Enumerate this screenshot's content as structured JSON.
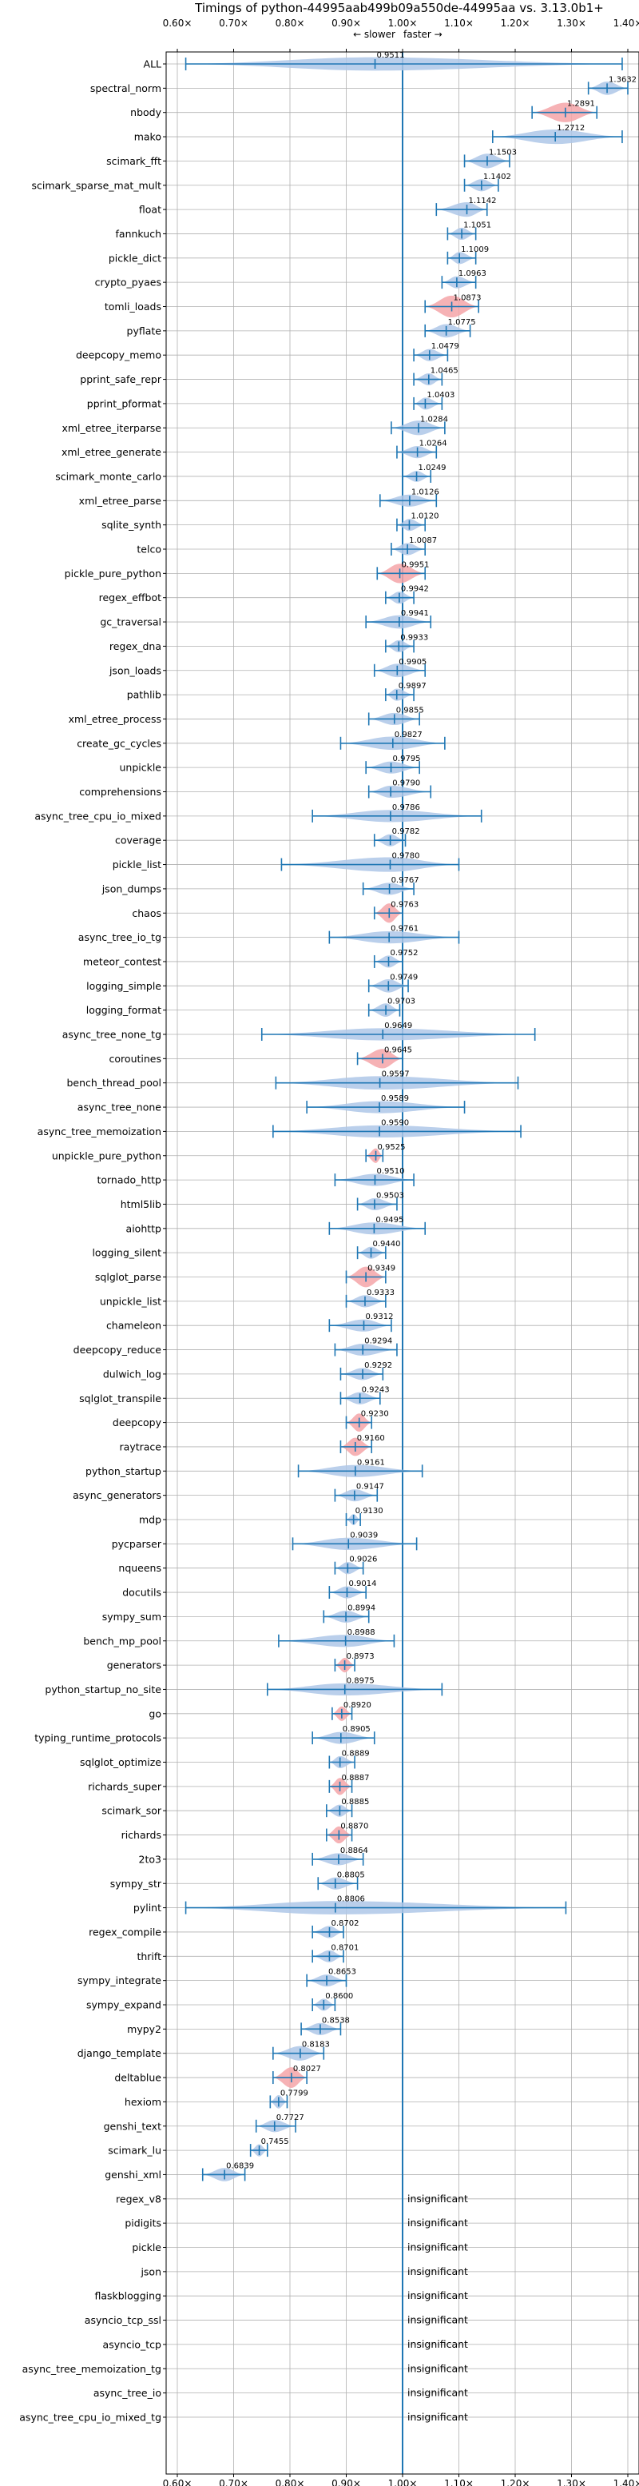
{
  "chart_data": {
    "type": "violin",
    "title": "Timings of python-44995aab499b09a550de-44995aa vs. 3.13.0b1+",
    "direction_left": "← slower",
    "direction_right": "faster →",
    "insignificant_label": "insignificant",
    "xlim": [
      0.6,
      1.4
    ],
    "xticks": [
      0.6,
      0.7,
      0.8,
      0.9,
      1.0,
      1.1,
      1.2,
      1.3,
      1.4
    ],
    "xtick_labels": [
      "0.60×",
      "0.70×",
      "0.80×",
      "0.90×",
      "1.00×",
      "1.10×",
      "1.20×",
      "1.30×",
      "1.40×"
    ],
    "grid": true,
    "colors": {
      "violin": "#aec7e8",
      "significant_violin": "#f4a5a8",
      "line": "#1f77b4",
      "grid": "#b0b0b0"
    },
    "rows": [
      {
        "name": "ALL",
        "value": 0.9511,
        "min": 0.615,
        "max": 1.39,
        "width": 0.55,
        "sig": false,
        "label": "0.9511"
      },
      {
        "name": "spectral_norm",
        "value": 1.3632,
        "min": 1.33,
        "max": 1.4,
        "width": 0.55,
        "sig": false,
        "label": "1.3632"
      },
      {
        "name": "nbody",
        "value": 1.2891,
        "min": 1.23,
        "max": 1.345,
        "width": 0.8,
        "sig": true,
        "label": "1.2891"
      },
      {
        "name": "mako",
        "value": 1.2712,
        "min": 1.16,
        "max": 1.39,
        "width": 0.6,
        "sig": false,
        "label": "1.2712"
      },
      {
        "name": "scimark_fft",
        "value": 1.1503,
        "min": 1.11,
        "max": 1.19,
        "width": 0.6,
        "sig": false,
        "label": "1.1503"
      },
      {
        "name": "scimark_sparse_mat_mult",
        "value": 1.1402,
        "min": 1.11,
        "max": 1.17,
        "width": 0.5,
        "sig": false,
        "label": "1.1402"
      },
      {
        "name": "float",
        "value": 1.1142,
        "min": 1.06,
        "max": 1.15,
        "width": 0.6,
        "sig": false,
        "label": "1.1142"
      },
      {
        "name": "fannkuch",
        "value": 1.1051,
        "min": 1.08,
        "max": 1.13,
        "width": 0.5,
        "sig": false,
        "label": "1.1051"
      },
      {
        "name": "pickle_dict",
        "value": 1.1009,
        "min": 1.08,
        "max": 1.13,
        "width": 0.5,
        "sig": false,
        "label": "1.1009"
      },
      {
        "name": "crypto_pyaes",
        "value": 1.0963,
        "min": 1.07,
        "max": 1.13,
        "width": 0.5,
        "sig": false,
        "label": "1.0963"
      },
      {
        "name": "tomli_loads",
        "value": 1.0873,
        "min": 1.04,
        "max": 1.135,
        "width": 0.9,
        "sig": true,
        "label": "1.0873"
      },
      {
        "name": "pyflate",
        "value": 1.0775,
        "min": 1.04,
        "max": 1.12,
        "width": 0.55,
        "sig": false,
        "label": "1.0775"
      },
      {
        "name": "deepcopy_memo",
        "value": 1.0479,
        "min": 1.02,
        "max": 1.08,
        "width": 0.5,
        "sig": false,
        "label": "1.0479"
      },
      {
        "name": "pprint_safe_repr",
        "value": 1.0465,
        "min": 1.02,
        "max": 1.07,
        "width": 0.5,
        "sig": false,
        "label": "1.0465"
      },
      {
        "name": "pprint_pformat",
        "value": 1.0403,
        "min": 1.02,
        "max": 1.07,
        "width": 0.5,
        "sig": false,
        "label": "1.0403"
      },
      {
        "name": "xml_etree_iterparse",
        "value": 1.0284,
        "min": 0.98,
        "max": 1.075,
        "width": 0.6,
        "sig": false,
        "label": "1.0284"
      },
      {
        "name": "xml_etree_generate",
        "value": 1.0264,
        "min": 0.99,
        "max": 1.06,
        "width": 0.5,
        "sig": false,
        "label": "1.0264"
      },
      {
        "name": "scimark_monte_carlo",
        "value": 1.0249,
        "min": 1.0,
        "max": 1.05,
        "width": 0.45,
        "sig": false,
        "label": "1.0249"
      },
      {
        "name": "xml_etree_parse",
        "value": 1.0126,
        "min": 0.96,
        "max": 1.06,
        "width": 0.5,
        "sig": false,
        "label": "1.0126"
      },
      {
        "name": "sqlite_synth",
        "value": 1.012,
        "min": 0.99,
        "max": 1.04,
        "width": 0.5,
        "sig": false,
        "label": "1.0120"
      },
      {
        "name": "telco",
        "value": 1.0087,
        "min": 0.98,
        "max": 1.04,
        "width": 0.5,
        "sig": false,
        "label": "1.0087"
      },
      {
        "name": "pickle_pure_python",
        "value": 0.9951,
        "min": 0.955,
        "max": 1.04,
        "width": 0.8,
        "sig": true,
        "label": "0.9951"
      },
      {
        "name": "regex_effbot",
        "value": 0.9942,
        "min": 0.97,
        "max": 1.02,
        "width": 0.5,
        "sig": false,
        "label": "0.9942"
      },
      {
        "name": "gc_traversal",
        "value": 0.9941,
        "min": 0.935,
        "max": 1.05,
        "width": 0.55,
        "sig": false,
        "label": "0.9941"
      },
      {
        "name": "regex_dna",
        "value": 0.9933,
        "min": 0.97,
        "max": 1.02,
        "width": 0.5,
        "sig": false,
        "label": "0.9933"
      },
      {
        "name": "json_loads",
        "value": 0.9905,
        "min": 0.95,
        "max": 1.04,
        "width": 0.55,
        "sig": false,
        "label": "0.9905"
      },
      {
        "name": "pathlib",
        "value": 0.9897,
        "min": 0.97,
        "max": 1.02,
        "width": 0.5,
        "sig": false,
        "label": "0.9897"
      },
      {
        "name": "xml_etree_process",
        "value": 0.9855,
        "min": 0.94,
        "max": 1.03,
        "width": 0.5,
        "sig": false,
        "label": "0.9855"
      },
      {
        "name": "create_gc_cycles",
        "value": 0.9827,
        "min": 0.89,
        "max": 1.075,
        "width": 0.55,
        "sig": false,
        "label": "0.9827"
      },
      {
        "name": "unpickle",
        "value": 0.9795,
        "min": 0.935,
        "max": 1.03,
        "width": 0.5,
        "sig": false,
        "label": "0.9795"
      },
      {
        "name": "comprehensions",
        "value": 0.979,
        "min": 0.94,
        "max": 1.05,
        "width": 0.5,
        "sig": false,
        "label": "0.9790"
      },
      {
        "name": "async_tree_cpu_io_mixed",
        "value": 0.9786,
        "min": 0.84,
        "max": 1.14,
        "width": 0.5,
        "sig": false,
        "label": "0.9786"
      },
      {
        "name": "coverage",
        "value": 0.9782,
        "min": 0.95,
        "max": 1.005,
        "width": 0.5,
        "sig": false,
        "label": "0.9782"
      },
      {
        "name": "pickle_list",
        "value": 0.978,
        "min": 0.785,
        "max": 1.1,
        "width": 0.6,
        "sig": false,
        "label": "0.9780"
      },
      {
        "name": "json_dumps",
        "value": 0.9767,
        "min": 0.93,
        "max": 1.02,
        "width": 0.5,
        "sig": false,
        "label": "0.9767"
      },
      {
        "name": "chaos",
        "value": 0.9763,
        "min": 0.95,
        "max": 1.0,
        "width": 0.8,
        "sig": true,
        "label": "0.9763"
      },
      {
        "name": "async_tree_io_tg",
        "value": 0.9761,
        "min": 0.87,
        "max": 1.1,
        "width": 0.5,
        "sig": false,
        "label": "0.9761"
      },
      {
        "name": "meteor_contest",
        "value": 0.9752,
        "min": 0.95,
        "max": 1.0,
        "width": 0.5,
        "sig": false,
        "label": "0.9752"
      },
      {
        "name": "logging_simple",
        "value": 0.9749,
        "min": 0.94,
        "max": 1.01,
        "width": 0.55,
        "sig": false,
        "label": "0.9749"
      },
      {
        "name": "logging_format",
        "value": 0.9703,
        "min": 0.94,
        "max": 0.995,
        "width": 0.55,
        "sig": false,
        "label": "0.9703"
      },
      {
        "name": "async_tree_none_tg",
        "value": 0.9649,
        "min": 0.75,
        "max": 1.235,
        "width": 0.5,
        "sig": false,
        "label": "0.9649"
      },
      {
        "name": "coroutines",
        "value": 0.9645,
        "min": 0.92,
        "max": 1.0,
        "width": 0.8,
        "sig": true,
        "label": "0.9645"
      },
      {
        "name": "bench_thread_pool",
        "value": 0.9597,
        "min": 0.775,
        "max": 1.205,
        "width": 0.55,
        "sig": false,
        "label": "0.9597"
      },
      {
        "name": "async_tree_none",
        "value": 0.9589,
        "min": 0.83,
        "max": 1.11,
        "width": 0.5,
        "sig": false,
        "label": "0.9589"
      },
      {
        "name": "async_tree_memoization",
        "value": 0.959,
        "min": 0.77,
        "max": 1.21,
        "width": 0.5,
        "sig": false,
        "label": "0.9590"
      },
      {
        "name": "unpickle_pure_python",
        "value": 0.9525,
        "min": 0.935,
        "max": 0.965,
        "width": 0.6,
        "sig": true,
        "label": "0.9525"
      },
      {
        "name": "tornado_http",
        "value": 0.951,
        "min": 0.88,
        "max": 1.02,
        "width": 0.5,
        "sig": false,
        "label": "0.9510"
      },
      {
        "name": "html5lib",
        "value": 0.9503,
        "min": 0.92,
        "max": 0.99,
        "width": 0.5,
        "sig": false,
        "label": "0.9503"
      },
      {
        "name": "aiohttp",
        "value": 0.9495,
        "min": 0.87,
        "max": 1.04,
        "width": 0.5,
        "sig": false,
        "label": "0.9495"
      },
      {
        "name": "logging_silent",
        "value": 0.944,
        "min": 0.92,
        "max": 0.97,
        "width": 0.5,
        "sig": false,
        "label": "0.9440"
      },
      {
        "name": "sqlglot_parse",
        "value": 0.9349,
        "min": 0.9,
        "max": 0.97,
        "width": 0.85,
        "sig": true,
        "label": "0.9349"
      },
      {
        "name": "unpickle_list",
        "value": 0.9333,
        "min": 0.9,
        "max": 0.97,
        "width": 0.5,
        "sig": false,
        "label": "0.9333"
      },
      {
        "name": "chameleon",
        "value": 0.9312,
        "min": 0.87,
        "max": 0.98,
        "width": 0.5,
        "sig": false,
        "label": "0.9312"
      },
      {
        "name": "deepcopy_reduce",
        "value": 0.9294,
        "min": 0.88,
        "max": 0.99,
        "width": 0.5,
        "sig": false,
        "label": "0.9294"
      },
      {
        "name": "dulwich_log",
        "value": 0.9292,
        "min": 0.89,
        "max": 0.965,
        "width": 0.5,
        "sig": false,
        "label": "0.9292"
      },
      {
        "name": "sqlglot_transpile",
        "value": 0.9243,
        "min": 0.89,
        "max": 0.96,
        "width": 0.5,
        "sig": false,
        "label": "0.9243"
      },
      {
        "name": "deepcopy",
        "value": 0.923,
        "min": 0.9,
        "max": 0.945,
        "width": 0.75,
        "sig": true,
        "label": "0.9230"
      },
      {
        "name": "raytrace",
        "value": 0.916,
        "min": 0.89,
        "max": 0.945,
        "width": 0.75,
        "sig": true,
        "label": "0.9160"
      },
      {
        "name": "python_startup",
        "value": 0.9161,
        "min": 0.815,
        "max": 1.035,
        "width": 0.5,
        "sig": false,
        "label": "0.9161"
      },
      {
        "name": "async_generators",
        "value": 0.9147,
        "min": 0.88,
        "max": 0.955,
        "width": 0.5,
        "sig": false,
        "label": "0.9147"
      },
      {
        "name": "mdp",
        "value": 0.913,
        "min": 0.9,
        "max": 0.925,
        "width": 0.45,
        "sig": false,
        "label": "0.9130"
      },
      {
        "name": "pycparser",
        "value": 0.9039,
        "min": 0.805,
        "max": 1.025,
        "width": 0.5,
        "sig": false,
        "label": "0.9039"
      },
      {
        "name": "nqueens",
        "value": 0.9026,
        "min": 0.88,
        "max": 0.93,
        "width": 0.5,
        "sig": false,
        "label": "0.9026"
      },
      {
        "name": "docutils",
        "value": 0.9014,
        "min": 0.87,
        "max": 0.935,
        "width": 0.5,
        "sig": false,
        "label": "0.9014"
      },
      {
        "name": "sympy_sum",
        "value": 0.8994,
        "min": 0.86,
        "max": 0.94,
        "width": 0.5,
        "sig": false,
        "label": "0.8994"
      },
      {
        "name": "bench_mp_pool",
        "value": 0.8988,
        "min": 0.78,
        "max": 0.985,
        "width": 0.5,
        "sig": false,
        "label": "0.8988"
      },
      {
        "name": "generators",
        "value": 0.8973,
        "min": 0.88,
        "max": 0.915,
        "width": 0.6,
        "sig": true,
        "label": "0.8973"
      },
      {
        "name": "python_startup_no_site",
        "value": 0.8975,
        "min": 0.76,
        "max": 1.07,
        "width": 0.5,
        "sig": false,
        "label": "0.8975"
      },
      {
        "name": "go",
        "value": 0.892,
        "min": 0.875,
        "max": 0.91,
        "width": 0.6,
        "sig": true,
        "label": "0.8920"
      },
      {
        "name": "typing_runtime_protocols",
        "value": 0.8905,
        "min": 0.84,
        "max": 0.95,
        "width": 0.5,
        "sig": false,
        "label": "0.8905"
      },
      {
        "name": "sqlglot_optimize",
        "value": 0.8889,
        "min": 0.87,
        "max": 0.915,
        "width": 0.5,
        "sig": false,
        "label": "0.8889"
      },
      {
        "name": "richards_super",
        "value": 0.8887,
        "min": 0.87,
        "max": 0.91,
        "width": 0.7,
        "sig": true,
        "label": "0.8887"
      },
      {
        "name": "scimark_sor",
        "value": 0.8885,
        "min": 0.865,
        "max": 0.91,
        "width": 0.5,
        "sig": false,
        "label": "0.8885"
      },
      {
        "name": "richards",
        "value": 0.887,
        "min": 0.865,
        "max": 0.91,
        "width": 0.7,
        "sig": true,
        "label": "0.8870"
      },
      {
        "name": "2to3",
        "value": 0.8864,
        "min": 0.84,
        "max": 0.93,
        "width": 0.5,
        "sig": false,
        "label": "0.8864"
      },
      {
        "name": "sympy_str",
        "value": 0.8805,
        "min": 0.85,
        "max": 0.92,
        "width": 0.5,
        "sig": false,
        "label": "0.8805"
      },
      {
        "name": "pylint",
        "value": 0.8806,
        "min": 0.615,
        "max": 1.29,
        "width": 0.55,
        "sig": false,
        "label": "0.8806"
      },
      {
        "name": "regex_compile",
        "value": 0.8702,
        "min": 0.84,
        "max": 0.895,
        "width": 0.5,
        "sig": false,
        "label": "0.8702"
      },
      {
        "name": "thrift",
        "value": 0.8701,
        "min": 0.84,
        "max": 0.895,
        "width": 0.5,
        "sig": false,
        "label": "0.8701"
      },
      {
        "name": "sympy_integrate",
        "value": 0.8653,
        "min": 0.83,
        "max": 0.9,
        "width": 0.5,
        "sig": false,
        "label": "0.8653"
      },
      {
        "name": "sympy_expand",
        "value": 0.86,
        "min": 0.84,
        "max": 0.88,
        "width": 0.5,
        "sig": false,
        "label": "0.8600"
      },
      {
        "name": "mypy2",
        "value": 0.8538,
        "min": 0.82,
        "max": 0.89,
        "width": 0.5,
        "sig": false,
        "label": "0.8538"
      },
      {
        "name": "django_template",
        "value": 0.8183,
        "min": 0.77,
        "max": 0.86,
        "width": 0.6,
        "sig": false,
        "label": "0.8183"
      },
      {
        "name": "deltablue",
        "value": 0.8027,
        "min": 0.77,
        "max": 0.83,
        "width": 0.85,
        "sig": true,
        "label": "0.8027"
      },
      {
        "name": "hexiom",
        "value": 0.7799,
        "min": 0.765,
        "max": 0.795,
        "width": 0.55,
        "sig": false,
        "label": "0.7799"
      },
      {
        "name": "genshi_text",
        "value": 0.7727,
        "min": 0.74,
        "max": 0.81,
        "width": 0.5,
        "sig": false,
        "label": "0.7727"
      },
      {
        "name": "scimark_lu",
        "value": 0.7455,
        "min": 0.73,
        "max": 0.76,
        "width": 0.5,
        "sig": false,
        "label": "0.7455"
      },
      {
        "name": "genshi_xml",
        "value": 0.6839,
        "min": 0.645,
        "max": 0.72,
        "width": 0.55,
        "sig": false,
        "label": "0.6839"
      },
      {
        "name": "regex_v8",
        "value": null,
        "insignificant": true
      },
      {
        "name": "pidigits",
        "value": null,
        "insignificant": true
      },
      {
        "name": "pickle",
        "value": null,
        "insignificant": true
      },
      {
        "name": "json",
        "value": null,
        "insignificant": true
      },
      {
        "name": "flaskblogging",
        "value": null,
        "insignificant": true
      },
      {
        "name": "asyncio_tcp_ssl",
        "value": null,
        "insignificant": true
      },
      {
        "name": "asyncio_tcp",
        "value": null,
        "insignificant": true
      },
      {
        "name": "async_tree_memoization_tg",
        "value": null,
        "insignificant": true
      },
      {
        "name": "async_tree_io",
        "value": null,
        "insignificant": true
      },
      {
        "name": "async_tree_cpu_io_mixed_tg",
        "value": null,
        "insignificant": true
      }
    ]
  }
}
